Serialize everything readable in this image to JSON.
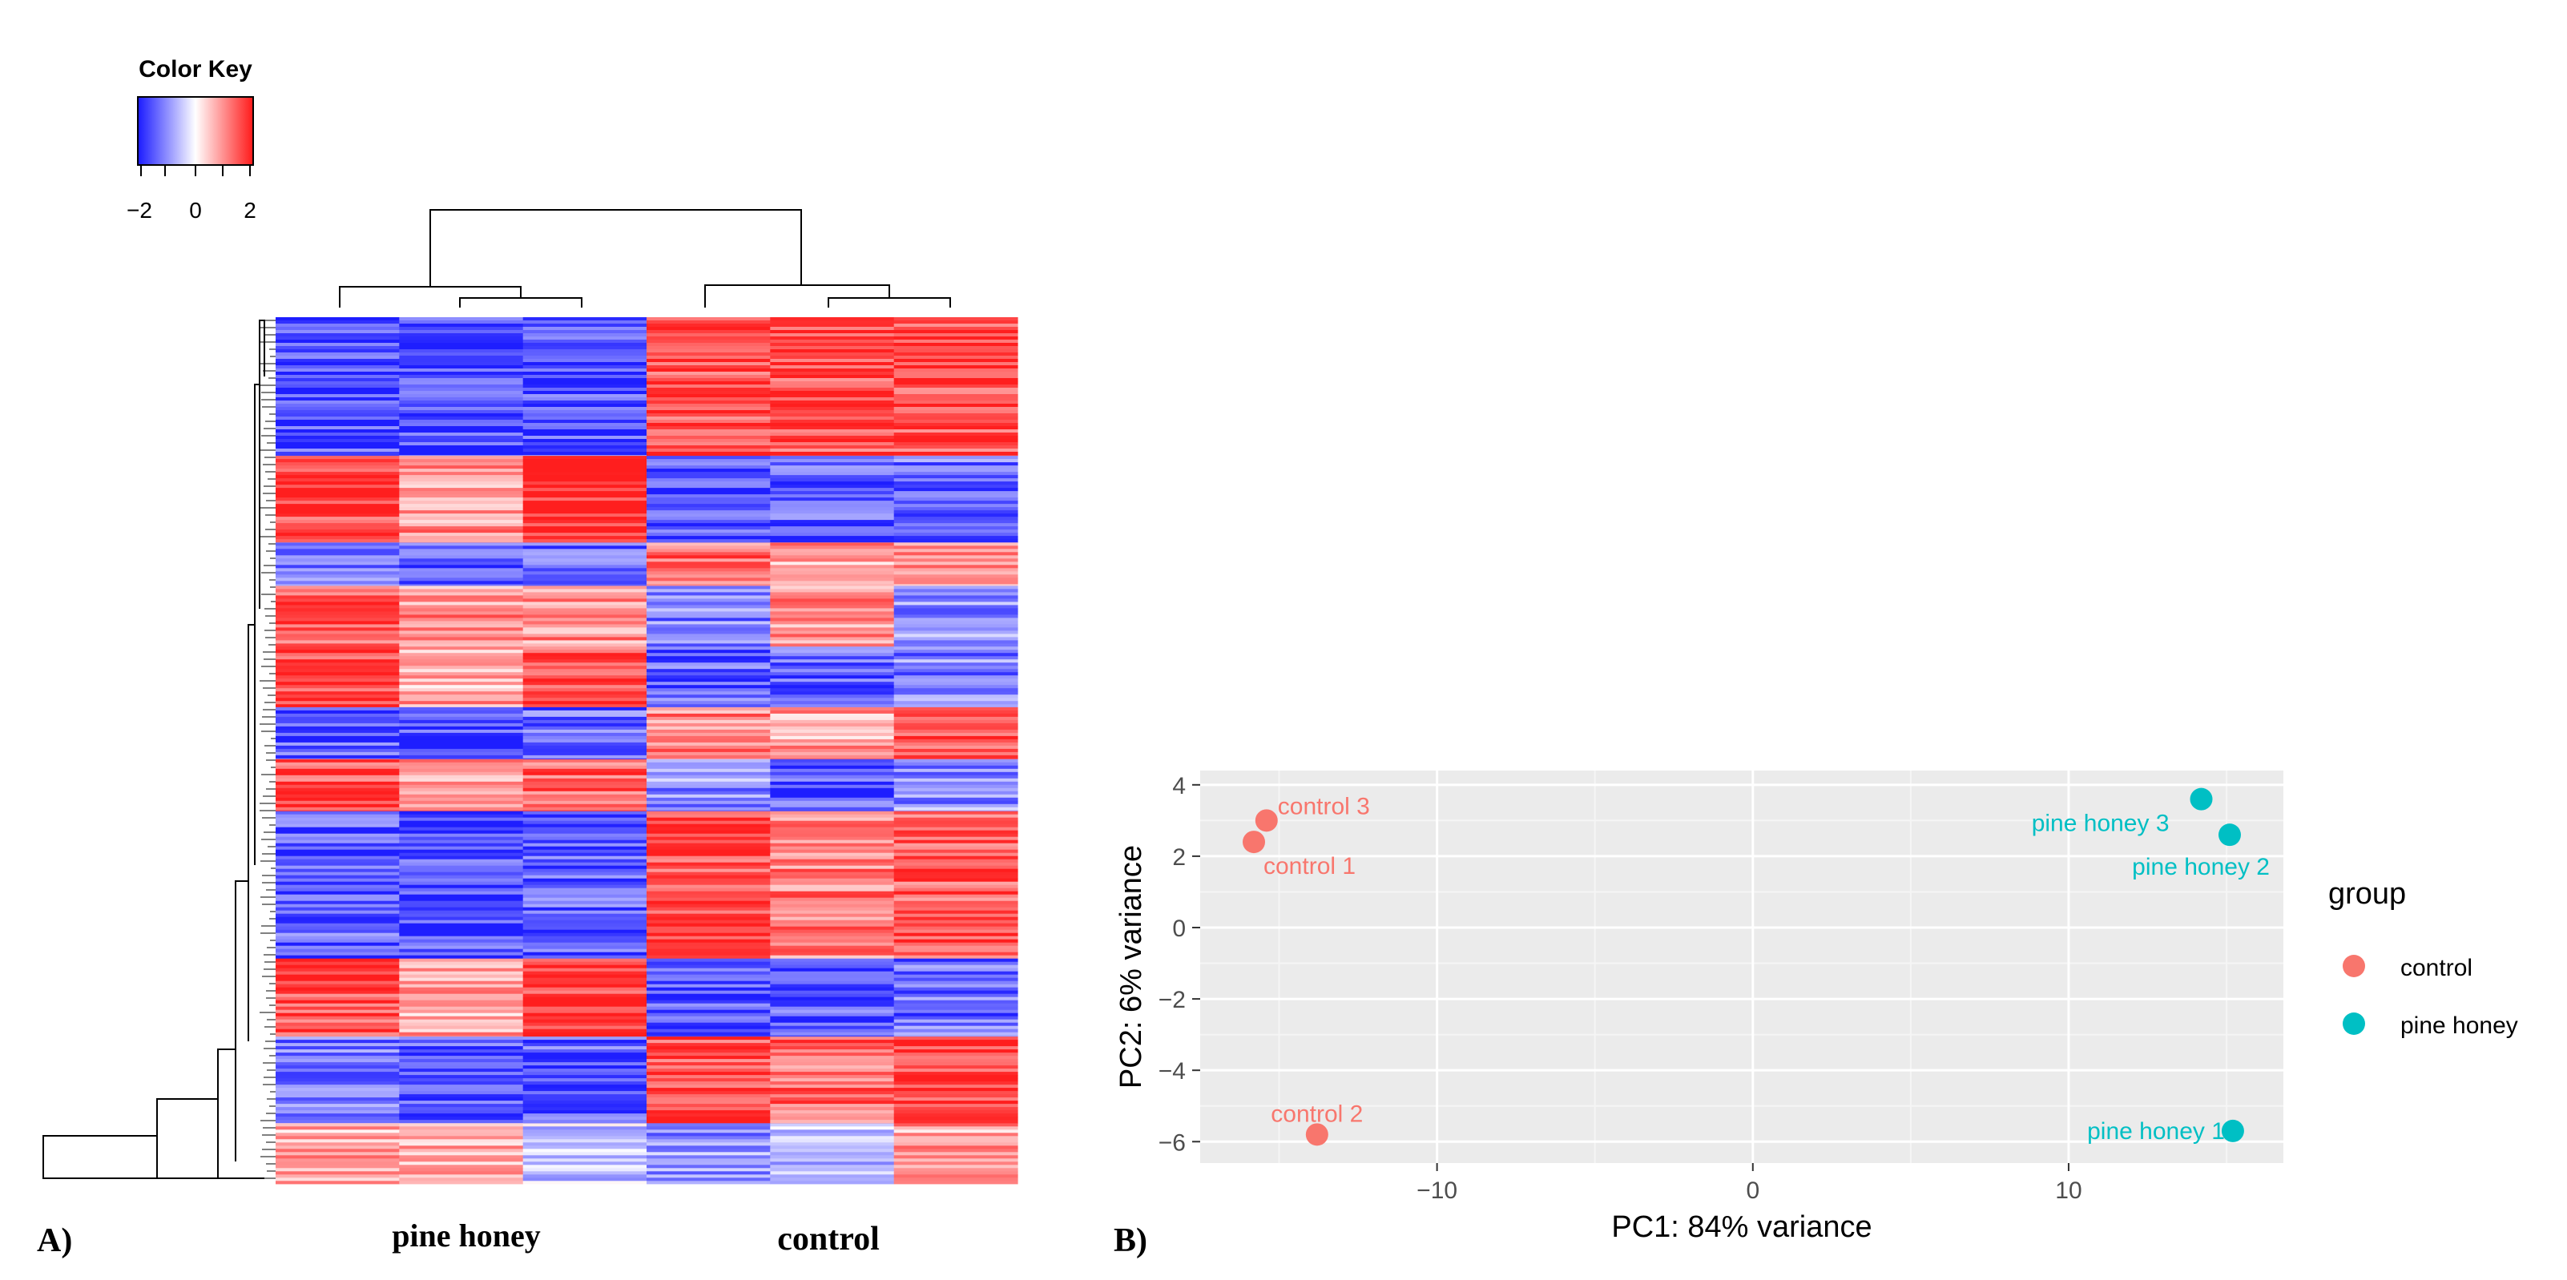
{
  "panel_labels": {
    "a": "A)",
    "b": "B)"
  },
  "chart_data": [
    {
      "type": "heatmap",
      "color_key": {
        "title": "Color Key",
        "ticks": [
          "−2",
          "0",
          "2"
        ],
        "low_color": "#1a1aff",
        "mid_color": "#ffffff",
        "high_color": "#ff1a1a"
      },
      "column_groups": [
        "pine honey",
        "control"
      ],
      "num_columns": 6,
      "blocks": [
        {
          "span": 0.16,
          "pattern": [
            -1,
            -1,
            -1,
            1,
            1,
            1
          ]
        },
        {
          "span": 0.1,
          "pattern": [
            1,
            0.6,
            1.2,
            -1,
            -0.9,
            -0.8
          ]
        },
        {
          "span": 0.05,
          "pattern": [
            -0.8,
            -0.9,
            -0.8,
            0.8,
            0.5,
            0.6
          ]
        },
        {
          "span": 0.07,
          "pattern": [
            0.9,
            0.6,
            0.6,
            -0.7,
            0.6,
            -0.6
          ]
        },
        {
          "span": 0.07,
          "pattern": [
            1,
            0.5,
            1,
            -0.9,
            -0.9,
            -0.7
          ]
        },
        {
          "span": 0.06,
          "pattern": [
            -0.9,
            -1,
            -0.8,
            0.7,
            0.5,
            0.9
          ]
        },
        {
          "span": 0.06,
          "pattern": [
            1,
            0.6,
            0.9,
            -0.6,
            -0.9,
            -0.6
          ]
        },
        {
          "span": 0.17,
          "pattern": [
            -0.9,
            -1,
            -0.9,
            1,
            0.7,
            0.9
          ]
        },
        {
          "span": 0.09,
          "pattern": [
            1,
            0.5,
            1.1,
            -1,
            -0.9,
            -0.8
          ]
        },
        {
          "span": 0.1,
          "pattern": [
            -0.8,
            -0.9,
            -0.9,
            1,
            0.8,
            1
          ]
        },
        {
          "span": 0.07,
          "pattern": [
            0.5,
            0.4,
            -0.3,
            -0.6,
            -0.4,
            0.5
          ]
        }
      ]
    },
    {
      "type": "scatter",
      "xlabel": "PC1: 84% variance",
      "ylabel": "PC2: 6% variance",
      "xlim": [
        -17.5,
        16.8
      ],
      "ylim": [
        -6.6,
        4.4
      ],
      "xticks": [
        -10,
        0,
        10
      ],
      "xtick_labels": [
        "−10",
        "0",
        "10"
      ],
      "yticks": [
        -6,
        -4,
        -2,
        0,
        2,
        4
      ],
      "ytick_labels": [
        "−6",
        "−4",
        "−2",
        "0",
        "2",
        "4"
      ],
      "legend_title": "group",
      "groups": [
        {
          "name": "control",
          "color": "#F8766D"
        },
        {
          "name": "pine honey",
          "color": "#00BFC4"
        }
      ],
      "points": [
        {
          "label": "control 3",
          "group": "control",
          "x": -15.4,
          "y": 3.0,
          "label_pos": "right-up"
        },
        {
          "label": "control 1",
          "group": "control",
          "x": -15.8,
          "y": 2.4,
          "label_pos": "below-right"
        },
        {
          "label": "control 2",
          "group": "control",
          "x": -13.8,
          "y": -5.8,
          "label_pos": "above"
        },
        {
          "label": "pine honey 3",
          "group": "pine honey",
          "x": 14.2,
          "y": 3.6,
          "label_pos": "left-down"
        },
        {
          "label": "pine honey 2",
          "group": "pine honey",
          "x": 15.1,
          "y": 2.6,
          "label_pos": "below-left"
        },
        {
          "label": "pine honey 1",
          "group": "pine honey",
          "x": 15.2,
          "y": -5.7,
          "label_pos": "left"
        }
      ]
    }
  ]
}
